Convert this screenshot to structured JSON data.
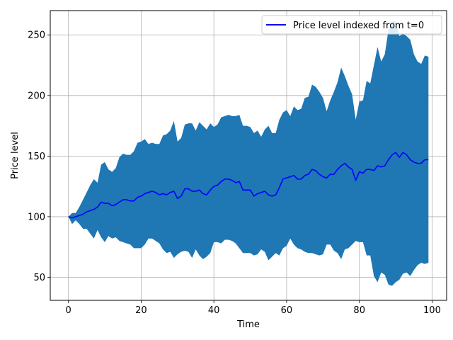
{
  "chart_data": {
    "type": "area",
    "title": "",
    "xlabel": "Time",
    "ylabel": "Price level",
    "xlim": [
      -5,
      104
    ],
    "ylim": [
      31,
      270
    ],
    "xticks": [
      0,
      20,
      40,
      60,
      80,
      100
    ],
    "yticks": [
      50,
      100,
      150,
      200,
      250
    ],
    "grid": true,
    "legend_position": "top-right",
    "colors": {
      "band": "#1f77b4",
      "line": "#0000ff"
    },
    "series": [
      {
        "name": "Price level indexed from t=0",
        "kind": "line",
        "x": [
          0,
          1,
          2,
          3,
          4,
          5,
          6,
          7,
          8,
          9,
          10,
          11,
          12,
          13,
          14,
          15,
          16,
          17,
          18,
          19,
          20,
          21,
          22,
          23,
          24,
          25,
          26,
          27,
          28,
          29,
          30,
          31,
          32,
          33,
          34,
          35,
          36,
          37,
          38,
          39,
          40,
          41,
          42,
          43,
          44,
          45,
          46,
          47,
          48,
          49,
          50,
          51,
          52,
          53,
          54,
          55,
          56,
          57,
          58,
          59,
          60,
          61,
          62,
          63,
          64,
          65,
          66,
          67,
          68,
          69,
          70,
          71,
          72,
          73,
          74,
          75,
          76,
          77,
          78,
          79,
          80,
          81,
          82,
          83,
          84,
          85,
          86,
          87,
          88,
          89,
          90,
          91,
          92,
          93,
          94,
          95,
          96,
          97,
          98,
          99
        ],
        "values": [
          100,
          99,
          100,
          101,
          102,
          104,
          105,
          106,
          108,
          112,
          111,
          111,
          109,
          110,
          112,
          114,
          114,
          113,
          113,
          116,
          117,
          119,
          120,
          121,
          120,
          118,
          119,
          118,
          120,
          121,
          115,
          117,
          123,
          123,
          121,
          121,
          122,
          119,
          118,
          122,
          125,
          126,
          129,
          131,
          131,
          130,
          128,
          129,
          122,
          122,
          122,
          117,
          119,
          120,
          121,
          118,
          117,
          118,
          124,
          131,
          132,
          133,
          134,
          131,
          131,
          134,
          135,
          139,
          138,
          135,
          133,
          132,
          135,
          135,
          139,
          142,
          144,
          141,
          139,
          130,
          137,
          136,
          139,
          139,
          138,
          142,
          141,
          142,
          147,
          151,
          153,
          149,
          153,
          151,
          147,
          145,
          144,
          144,
          147,
          147
        ]
      }
    ],
    "band": {
      "x": [
        0,
        1,
        2,
        3,
        4,
        5,
        6,
        7,
        8,
        9,
        10,
        11,
        12,
        13,
        14,
        15,
        16,
        17,
        18,
        19,
        20,
        21,
        22,
        23,
        24,
        25,
        26,
        27,
        28,
        29,
        30,
        31,
        32,
        33,
        34,
        35,
        36,
        37,
        38,
        39,
        40,
        41,
        42,
        43,
        44,
        45,
        46,
        47,
        48,
        49,
        50,
        51,
        52,
        53,
        54,
        55,
        56,
        57,
        58,
        59,
        60,
        61,
        62,
        63,
        64,
        65,
        66,
        67,
        68,
        69,
        70,
        71,
        72,
        73,
        74,
        75,
        76,
        77,
        78,
        79,
        80,
        81,
        82,
        83,
        84,
        85,
        86,
        87,
        88,
        89,
        90,
        91,
        92,
        93,
        94,
        95,
        96,
        97,
        98,
        99
      ],
      "upper": [
        100,
        103,
        103,
        108,
        114,
        120,
        126,
        131,
        128,
        143,
        145,
        139,
        137,
        140,
        149,
        152,
        151,
        151,
        154,
        161,
        162,
        164,
        160,
        161,
        160,
        160,
        167,
        168,
        171,
        179,
        162,
        165,
        176,
        177,
        177,
        171,
        178,
        175,
        172,
        177,
        174,
        176,
        182,
        183,
        184,
        183,
        183,
        184,
        175,
        175,
        174,
        169,
        171,
        166,
        172,
        175,
        169,
        169,
        180,
        186,
        188,
        183,
        191,
        188,
        189,
        198,
        199,
        209,
        207,
        203,
        198,
        187,
        196,
        203,
        211,
        223,
        216,
        208,
        201,
        180,
        195,
        196,
        212,
        210,
        225,
        240,
        228,
        234,
        254,
        261,
        261,
        249,
        251,
        249,
        246,
        234,
        228,
        226,
        233,
        232
      ],
      "lower": [
        100,
        94,
        97,
        94,
        90,
        90,
        86,
        82,
        89,
        83,
        79,
        84,
        82,
        83,
        80,
        79,
        78,
        77,
        74,
        74,
        74,
        77,
        82,
        82,
        80,
        78,
        73,
        70,
        71,
        66,
        69,
        71,
        72,
        71,
        66,
        73,
        68,
        65,
        67,
        70,
        79,
        79,
        78,
        81,
        81,
        80,
        78,
        74,
        70,
        70,
        70,
        68,
        69,
        73,
        71,
        64,
        67,
        70,
        68,
        74,
        76,
        82,
        77,
        74,
        73,
        71,
        70,
        70,
        69,
        68,
        69,
        77,
        77,
        72,
        70,
        65,
        73,
        74,
        77,
        80,
        79,
        79,
        68,
        68,
        51,
        46,
        54,
        52,
        44,
        43,
        46,
        48,
        53,
        54,
        51,
        56,
        60,
        62,
        61,
        62
      ]
    }
  }
}
